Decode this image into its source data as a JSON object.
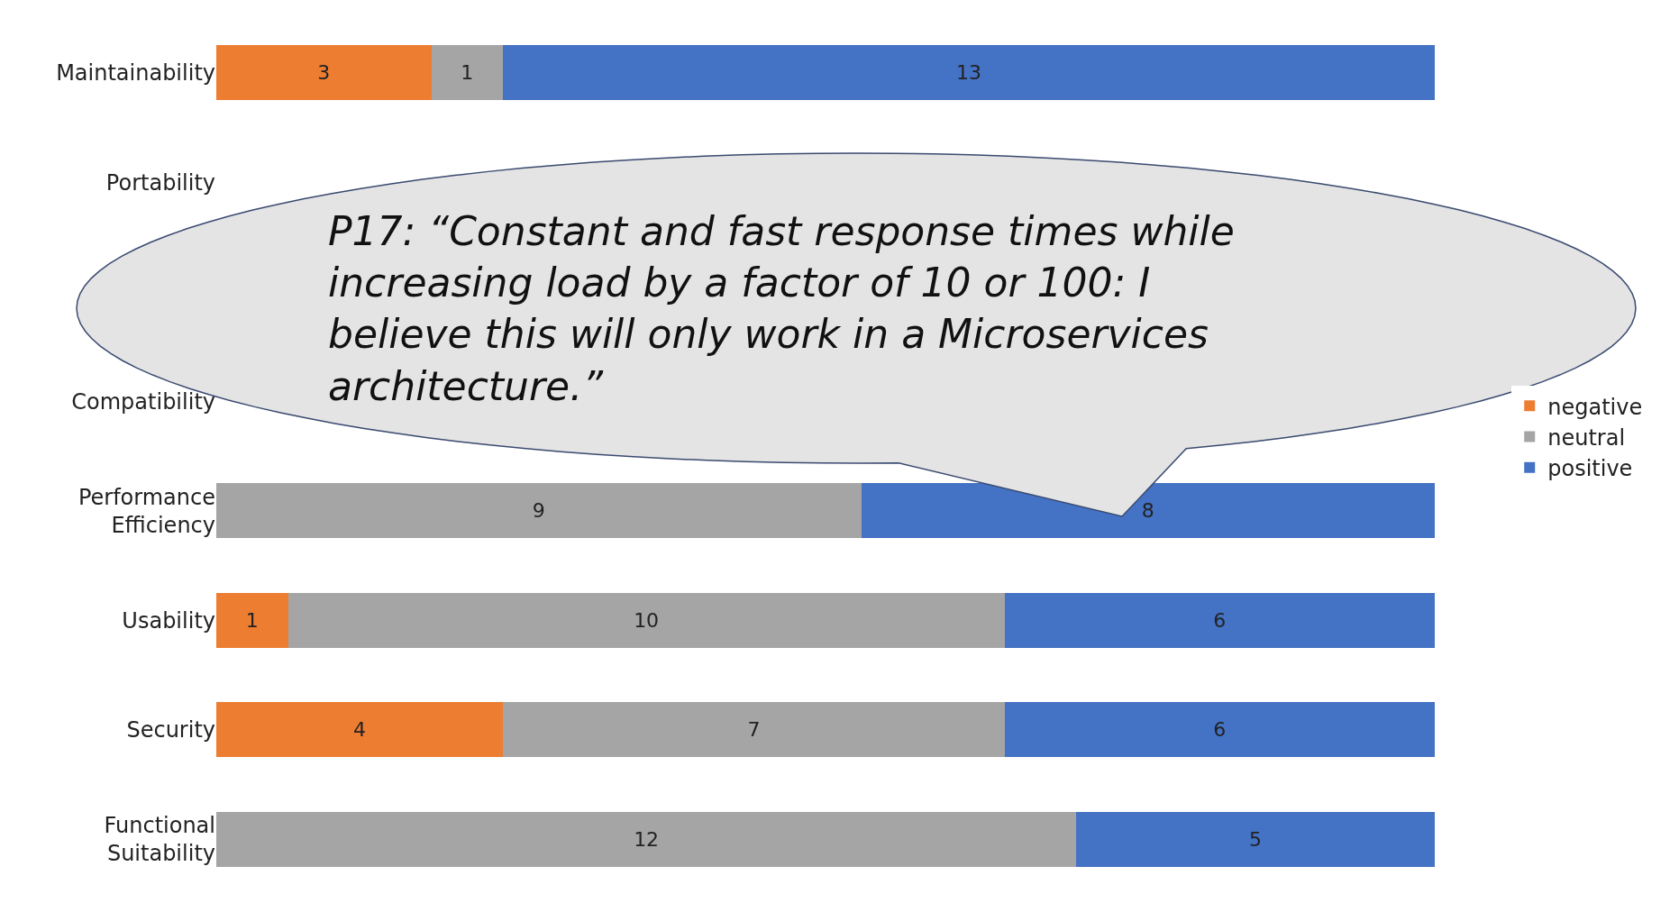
{
  "chart_data": {
    "type": "bar",
    "orientation": "horizontal",
    "stacked": true,
    "data_labels": true,
    "legend": "right",
    "categories": [
      "Maintainability",
      "Portability",
      null,
      "Compatibility",
      "Performance Efficiency",
      "Usability",
      "Security",
      "Functional Suitability"
    ],
    "series": [
      {
        "name": "negative",
        "color": "#ed7d31",
        "values": [
          3,
          null,
          null,
          null,
          null,
          1,
          4,
          null
        ]
      },
      {
        "name": "neutral",
        "color": "#a5a5a5",
        "values": [
          1,
          null,
          null,
          null,
          9,
          10,
          7,
          12
        ]
      },
      {
        "name": "positive",
        "color": "#4472c4",
        "values": [
          13,
          null,
          null,
          null,
          8,
          6,
          6,
          5
        ]
      }
    ],
    "annotations": [
      "P17: “Constant and fast response times while increasing load by a factor of 10 or 100: I believe this will only work in a Microservices architecture.”"
    ]
  }
}
